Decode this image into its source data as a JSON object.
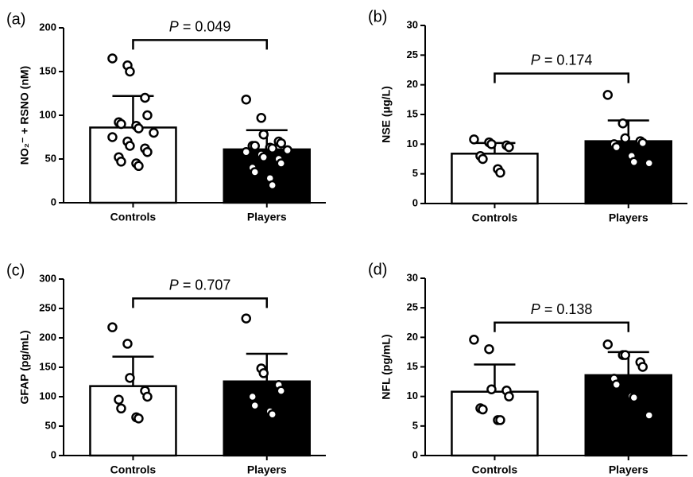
{
  "chart_data": [
    {
      "type": "bar",
      "panel_label": "(a)",
      "ylabel": "NO₂⁻ + RSNO (nM)",
      "categories": [
        "Controls",
        "Players"
      ],
      "values": [
        86,
        61
      ],
      "errors": [
        36,
        22
      ],
      "colors": [
        "#ffffff",
        "#000000"
      ],
      "points": [
        [
          165,
          157,
          150,
          120,
          100,
          92,
          90,
          88,
          85,
          80,
          75,
          70,
          65,
          62,
          58,
          52,
          47,
          45,
          42
        ],
        [
          118,
          97,
          78,
          70,
          68,
          65,
          65,
          63,
          62,
          60,
          58,
          55,
          52,
          50,
          45,
          40,
          35,
          28,
          20
        ]
      ],
      "annotation_italic": "P",
      "annotation": "= 0.049",
      "ylim": [
        0,
        200
      ],
      "yticks": [
        0,
        50,
        100,
        150,
        200
      ]
    },
    {
      "type": "bar",
      "panel_label": "(b)",
      "ylabel": "NSE (μg/L)",
      "categories": [
        "Controls",
        "Players"
      ],
      "values": [
        8.4,
        10.5
      ],
      "errors": [
        1.8,
        3.5
      ],
      "colors": [
        "#ffffff",
        "#000000"
      ],
      "points": [
        [
          10.8,
          10.3,
          10,
          9.8,
          9.5,
          8,
          7.5,
          5.8,
          5.2
        ],
        [
          18.3,
          13.5,
          11,
          10.5,
          10.2,
          10,
          9.5,
          8,
          7,
          6.8
        ]
      ],
      "annotation_italic": "P",
      "annotation": "= 0.174",
      "ylim": [
        0,
        30
      ],
      "yticks": [
        0,
        5,
        10,
        15,
        20,
        25,
        30
      ]
    },
    {
      "type": "bar",
      "panel_label": "(c)",
      "ylabel": "GFAP (pg/mL)",
      "categories": [
        "Controls",
        "Players"
      ],
      "values": [
        118,
        126
      ],
      "errors": [
        50,
        47
      ],
      "colors": [
        "#ffffff",
        "#000000"
      ],
      "points": [
        [
          218,
          190,
          132,
          110,
          100,
          95,
          80,
          65,
          63
        ],
        [
          233,
          148,
          140,
          120,
          110,
          100,
          85,
          75,
          70
        ]
      ],
      "annotation_italic": "P",
      "annotation": "= 0.707",
      "ylim": [
        0,
        300
      ],
      "yticks": [
        0,
        50,
        100,
        150,
        200,
        250,
        300
      ]
    },
    {
      "type": "bar",
      "panel_label": "(d)",
      "ylabel": "NFL (pg/mL)",
      "categories": [
        "Controls",
        "Players"
      ],
      "values": [
        10.8,
        13.6
      ],
      "errors": [
        4.6,
        3.9
      ],
      "colors": [
        "#ffffff",
        "#000000"
      ],
      "points": [
        [
          19.6,
          18,
          11.2,
          11,
          10,
          8,
          7.8,
          6,
          6
        ],
        [
          18.8,
          17,
          17,
          15.8,
          15,
          13,
          12,
          10,
          9.8,
          6.8
        ]
      ],
      "annotation_italic": "P",
      "annotation": "= 0.138",
      "ylim": [
        0,
        30
      ],
      "yticks": [
        0,
        5,
        10,
        15,
        20,
        25,
        30
      ]
    }
  ]
}
